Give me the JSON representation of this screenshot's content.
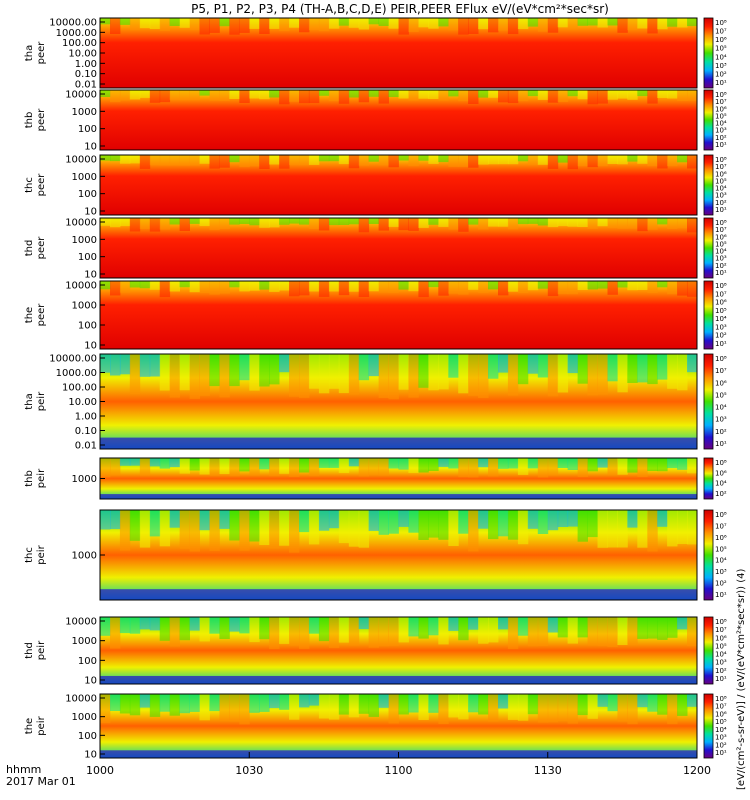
{
  "title": "P5, P1, P2, P3, P4 (TH-A,B,C,D,E) PEIR,PEER EFlux eV/(eV*cm²*sec*sr)",
  "colorbar_label": "[eV/(cm²-s-sr-eV)] / (eV/(eV*cm²*sec*sr)) (4)",
  "colormap": [
    "#6a0080",
    "#2010d0",
    "#00b0ff",
    "#00e0a0",
    "#40e000",
    "#f0f000",
    "#ff9000",
    "#ff2000",
    "#d00000"
  ],
  "time_axis": {
    "ticks": [
      "1000",
      "1030",
      "1100",
      "1130",
      "1200"
    ],
    "corner_label_1": "hhmm",
    "corner_label_2": "2017 Mar 01"
  },
  "chart_data": {
    "type": "heatmap",
    "x_range": [
      "1000",
      "1200"
    ],
    "y_scale": "log",
    "panels": [
      {
        "probe": "tha",
        "species": "peer",
        "ylabel_1": "tha",
        "ylabel_2": "peer",
        "yticks": [
          "10000.00",
          "1000.00",
          "100.00",
          "10.00",
          "1.00",
          "0.10",
          "0.01"
        ],
        "colorbar_ticks": [
          "10⁸",
          "10⁷",
          "10⁶",
          "10⁵",
          "10⁴",
          "10³",
          "10²",
          "10¹"
        ]
      },
      {
        "probe": "thb",
        "species": "peer",
        "ylabel_1": "thb",
        "ylabel_2": "peer",
        "yticks": [
          "10000",
          "1000",
          "100",
          "10"
        ],
        "colorbar_ticks": [
          "10⁸",
          "10⁷",
          "10⁶",
          "10⁵",
          "10⁴",
          "10³",
          "10²",
          "10¹"
        ]
      },
      {
        "probe": "thc",
        "species": "peer",
        "ylabel_1": "thc",
        "ylabel_2": "peer",
        "yticks": [
          "10000",
          "1000",
          "100",
          "10"
        ],
        "colorbar_ticks": [
          "10⁸",
          "10⁷",
          "10⁶",
          "10⁵",
          "10⁴",
          "10³",
          "10²",
          "10¹"
        ]
      },
      {
        "probe": "thd",
        "species": "peer",
        "ylabel_1": "thd",
        "ylabel_2": "peer",
        "yticks": [
          "10000",
          "1000",
          "100",
          "10"
        ],
        "colorbar_ticks": [
          "10⁸",
          "10⁷",
          "10⁶",
          "10⁵",
          "10⁴",
          "10³",
          "10²",
          "10¹"
        ]
      },
      {
        "probe": "the",
        "species": "peer",
        "ylabel_1": "the",
        "ylabel_2": "peer",
        "yticks": [
          "10000",
          "1000",
          "100",
          "10"
        ],
        "colorbar_ticks": [
          "10⁸",
          "10⁷",
          "10⁶",
          "10⁵",
          "10⁴",
          "10³",
          "10²",
          "10¹"
        ]
      },
      {
        "probe": "tha",
        "species": "peir",
        "ylabel_1": "tha",
        "ylabel_2": "peir",
        "yticks": [
          "10000.00",
          "1000.00",
          "100.00",
          "10.00",
          "1.00",
          "0.10",
          "0.01"
        ],
        "colorbar_ticks": [
          "10⁸",
          "10⁷",
          "10⁶",
          "10⁵",
          "10⁴",
          "10³",
          "10²",
          "10¹"
        ]
      },
      {
        "probe": "thb",
        "species": "peir",
        "ylabel_1": "thb",
        "ylabel_2": "peir",
        "yticks": [
          "1000"
        ],
        "colorbar_ticks": [
          "10⁸",
          "10⁷",
          "10⁶",
          "10⁵",
          "10⁴",
          "10³",
          "10²",
          "10¹"
        ]
      },
      {
        "probe": "thc",
        "species": "peir",
        "ylabel_1": "thc",
        "ylabel_2": "peir",
        "yticks": [
          "1000"
        ],
        "colorbar_ticks": [
          "10⁸",
          "10⁷",
          "10⁶",
          "10⁵",
          "10⁴",
          "10³",
          "10²",
          "10¹"
        ]
      },
      {
        "probe": "thd",
        "species": "peir",
        "ylabel_1": "thd",
        "ylabel_2": "peir",
        "yticks": [
          "10000",
          "1000",
          "100",
          "10"
        ],
        "colorbar_ticks": [
          "10⁸",
          "10⁷",
          "10⁶",
          "10⁵",
          "10⁴",
          "10³",
          "10²",
          "10¹"
        ]
      },
      {
        "probe": "the",
        "species": "peir",
        "ylabel_1": "the",
        "ylabel_2": "peir",
        "yticks": [
          "10000",
          "1000",
          "100",
          "10"
        ],
        "colorbar_ticks": [
          "10⁸",
          "10⁷",
          "10⁶",
          "10⁵",
          "10⁴",
          "10³",
          "10²",
          "10¹"
        ]
      }
    ]
  }
}
